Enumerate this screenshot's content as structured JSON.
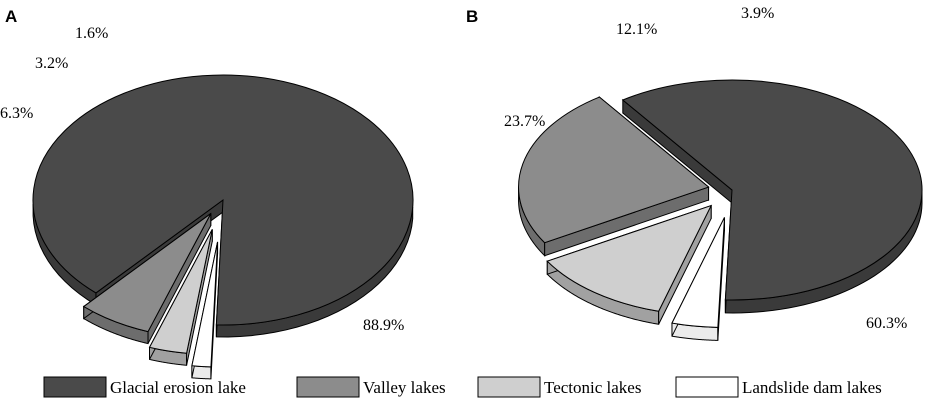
{
  "legend": [
    {
      "label": "Glacial erosion lake",
      "color": "#4a4a4a"
    },
    {
      "label": "Valley lakes",
      "color": "#8c8c8c"
    },
    {
      "label": "Tectonic lakes",
      "color": "#cfcfcf"
    },
    {
      "label": "Landslide dam lakes",
      "color": "#ffffff"
    }
  ],
  "chart_data": [
    {
      "type": "pie",
      "panel": "A",
      "categories": [
        "Glacial erosion lake",
        "Valley lakes",
        "Tectonic lakes",
        "Landslide dam lakes"
      ],
      "values": [
        88.9,
        6.3,
        3.2,
        1.6
      ],
      "labels": [
        "88.9%",
        "6.3%",
        "3.2%",
        "1.6%"
      ],
      "colors": [
        "#4a4a4a",
        "#8c8c8c",
        "#cfcfcf",
        "#ffffff"
      ],
      "style": "3d-exploded",
      "legend": "bottom"
    },
    {
      "type": "pie",
      "panel": "B",
      "categories": [
        "Glacial erosion lake",
        "Valley lakes",
        "Tectonic lakes",
        "Landslide dam lakes"
      ],
      "values": [
        60.3,
        23.7,
        12.1,
        3.9
      ],
      "labels": [
        "60.3%",
        "23.7%",
        "12.1%",
        "3.9%"
      ],
      "colors": [
        "#4a4a4a",
        "#8c8c8c",
        "#cfcfcf",
        "#ffffff"
      ],
      "style": "3d-exploded",
      "legend": "bottom"
    }
  ]
}
